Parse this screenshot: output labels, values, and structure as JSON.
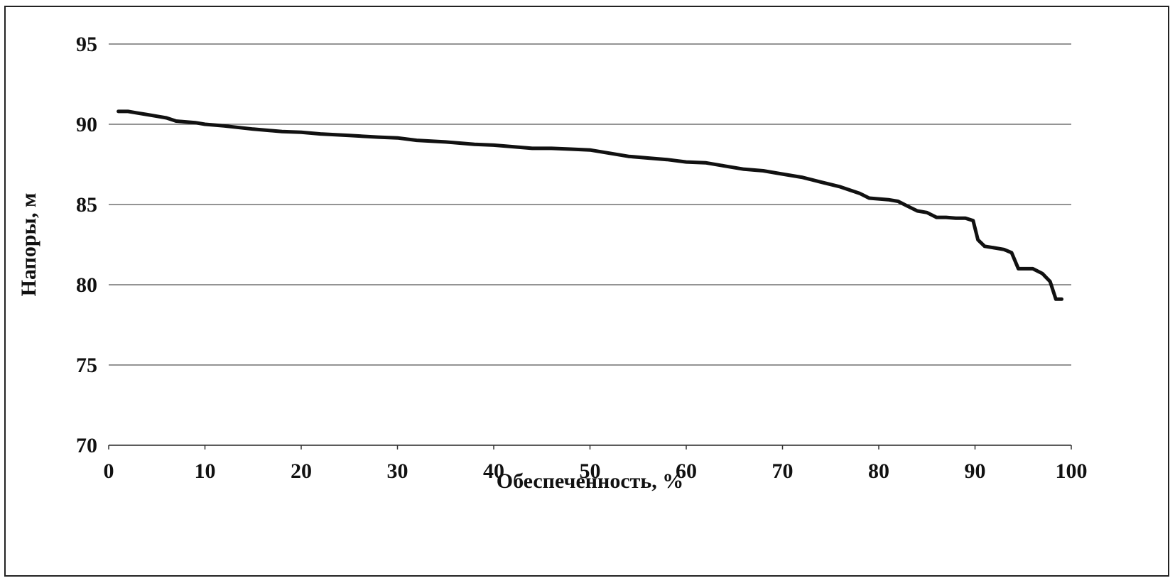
{
  "chart_data": {
    "type": "line",
    "title": "",
    "xlabel": "Обеспеченность, %",
    "ylabel": "Напоры, м",
    "xlim": [
      0,
      100
    ],
    "ylim": [
      70,
      95
    ],
    "xticks": [
      0,
      10,
      20,
      30,
      40,
      50,
      60,
      70,
      80,
      90,
      100
    ],
    "yticks": [
      70,
      75,
      80,
      85,
      90,
      95
    ],
    "grid": true,
    "legend": "none",
    "series_color": "#111111",
    "series": [
      {
        "x": [
          1,
          2,
          3,
          4,
          5,
          6,
          7,
          8,
          9,
          10,
          12,
          15,
          18,
          20,
          22,
          25,
          28,
          30,
          32,
          35,
          38,
          40,
          42,
          44,
          46,
          48,
          50,
          52,
          54,
          56,
          58,
          60,
          62,
          64,
          66,
          68,
          70,
          72,
          74,
          76,
          78,
          79,
          80,
          81,
          82,
          83,
          84,
          85,
          86,
          87,
          88,
          89,
          89.8,
          90.3,
          91,
          92,
          93,
          93.8,
          94.5,
          95.2,
          96,
          97,
          97.8,
          98.4,
          99
        ],
        "y": [
          90.8,
          90.8,
          90.7,
          90.6,
          90.5,
          90.4,
          90.2,
          90.15,
          90.1,
          90.0,
          89.9,
          89.7,
          89.55,
          89.5,
          89.4,
          89.3,
          89.2,
          89.15,
          89.0,
          88.9,
          88.75,
          88.7,
          88.6,
          88.5,
          88.5,
          88.45,
          88.4,
          88.2,
          88.0,
          87.9,
          87.8,
          87.65,
          87.6,
          87.4,
          87.2,
          87.1,
          86.9,
          86.7,
          86.4,
          86.1,
          85.7,
          85.4,
          85.35,
          85.3,
          85.2,
          84.9,
          84.6,
          84.5,
          84.2,
          84.2,
          84.15,
          84.15,
          84.0,
          82.8,
          82.4,
          82.3,
          82.2,
          82.0,
          81.0,
          81.0,
          81.0,
          80.7,
          80.2,
          79.1,
          79.1
        ]
      }
    ]
  }
}
